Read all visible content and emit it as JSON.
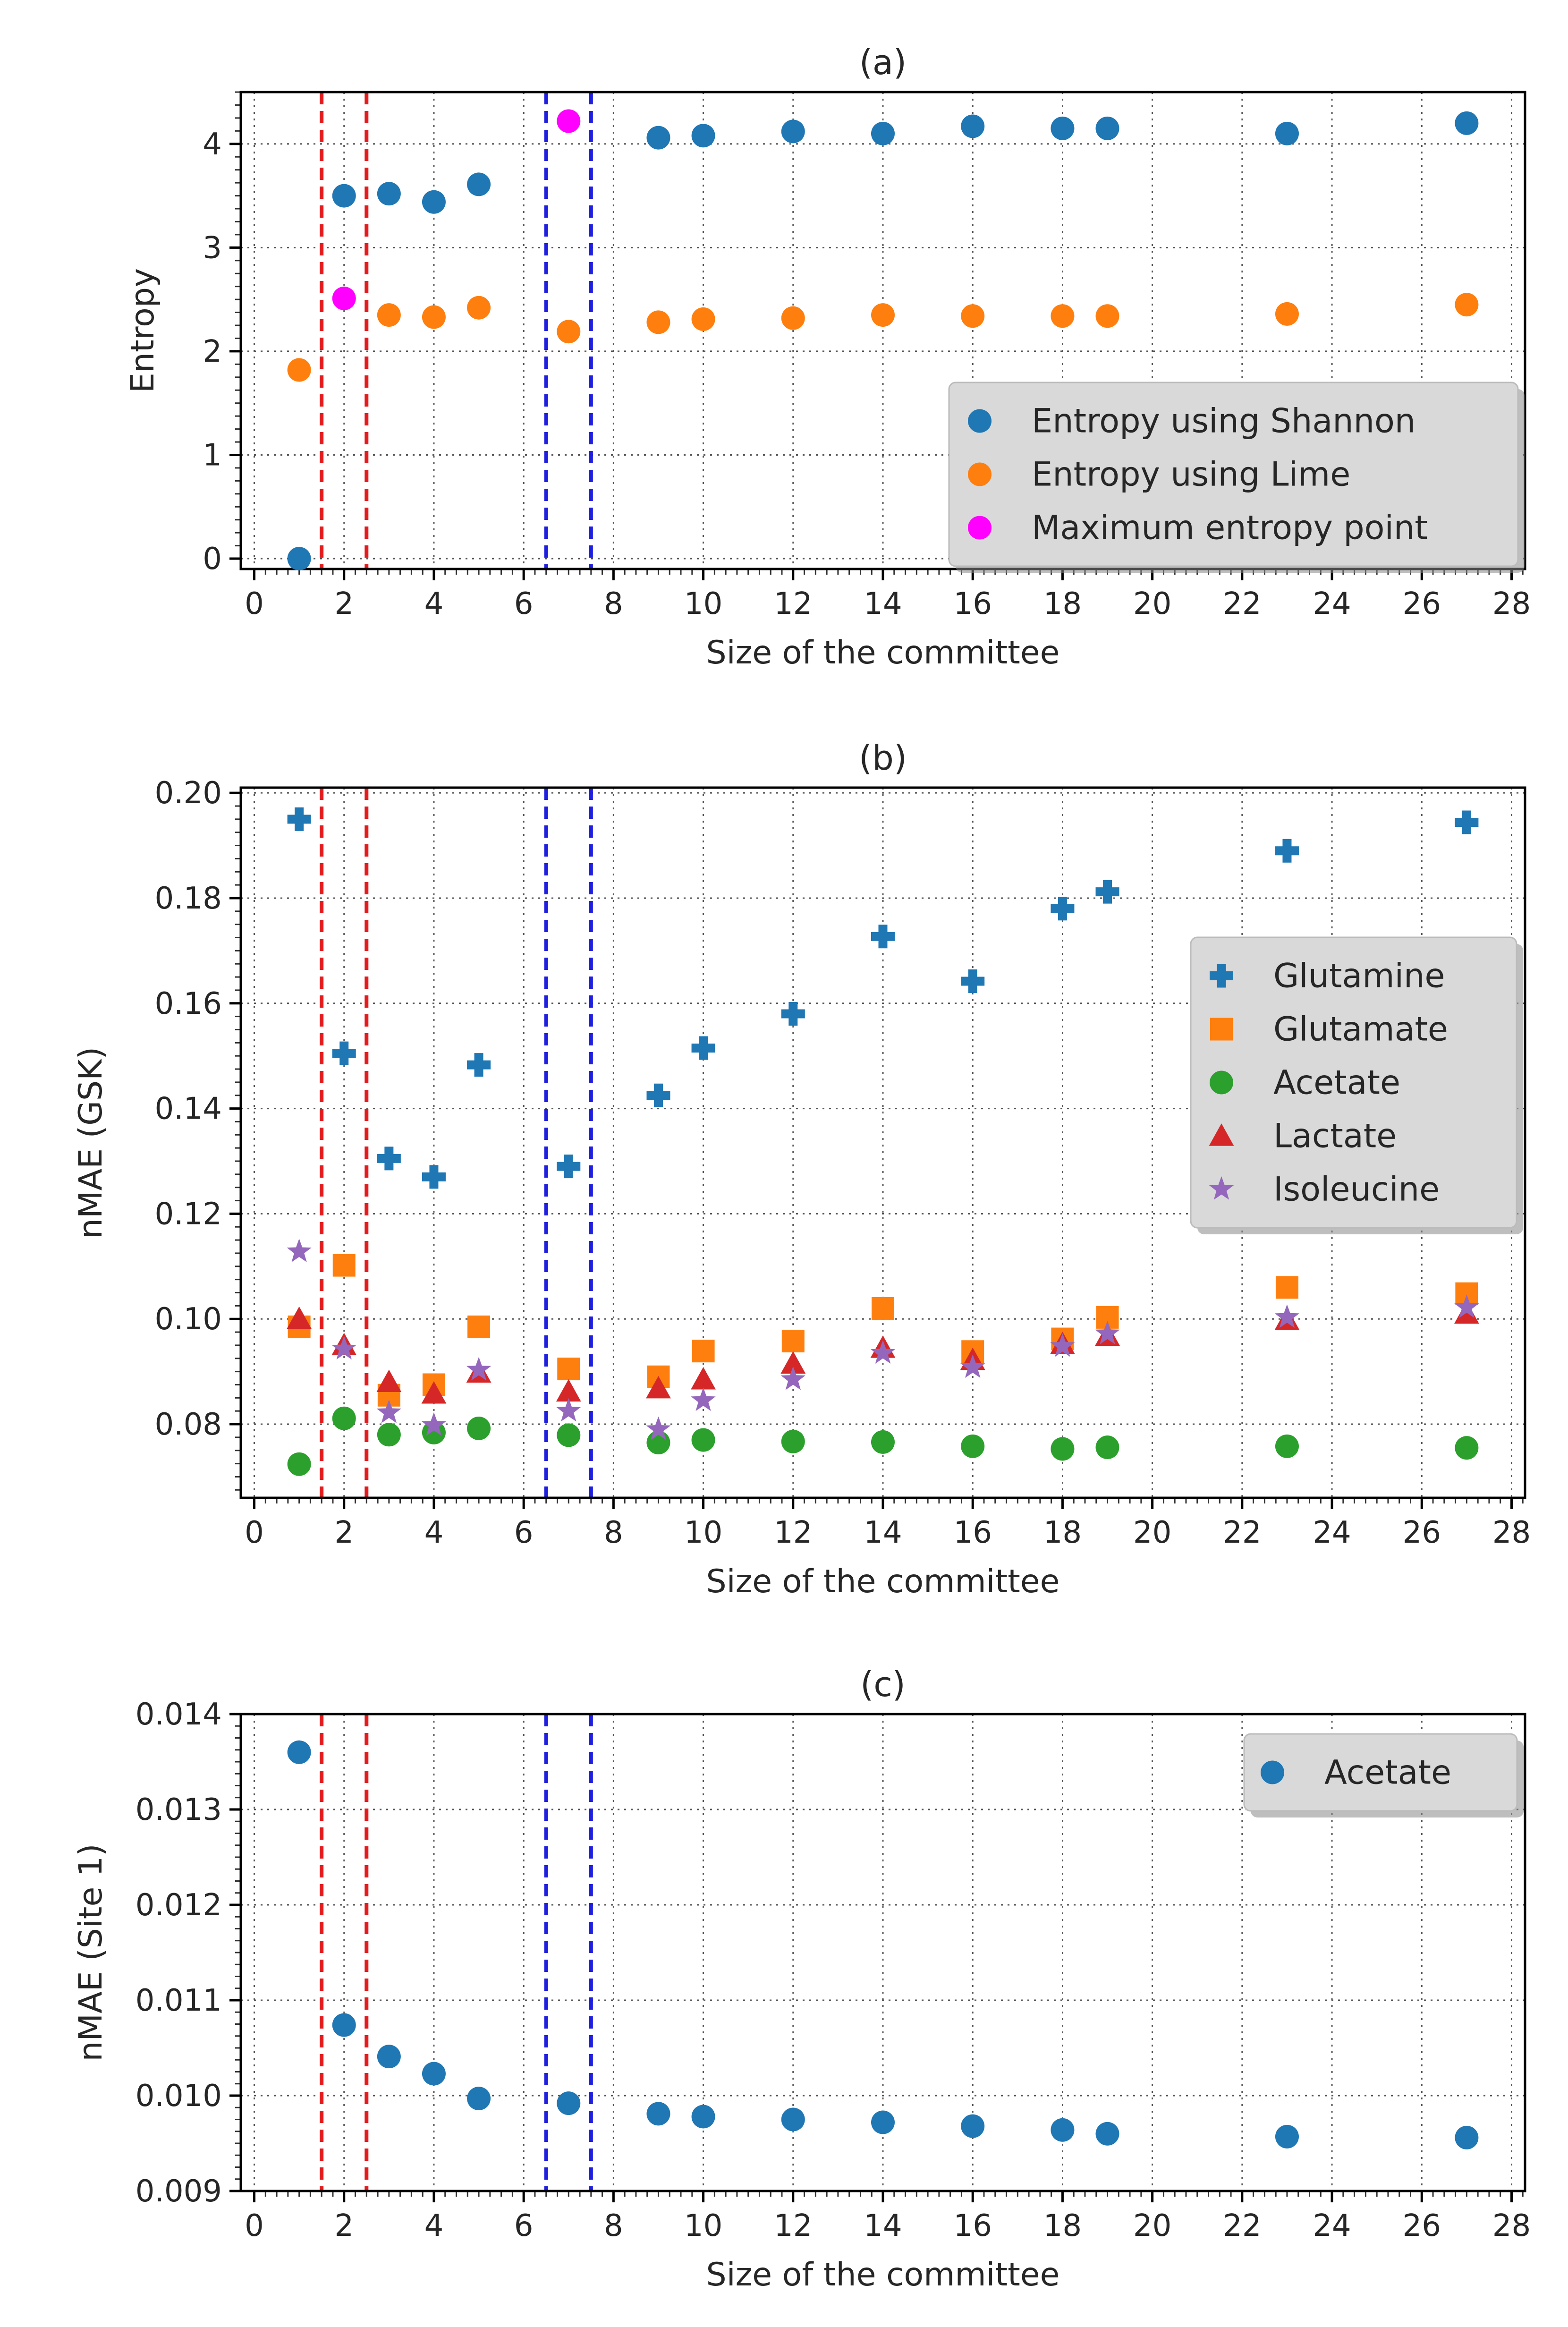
{
  "chart_data": [
    {
      "type": "scatter",
      "title": "(a)",
      "xlabel": "Size of the committee",
      "ylabel": "Entropy",
      "xlim": [
        -0.3,
        28.3
      ],
      "ylim": [
        -0.1,
        4.5
      ],
      "xticks": [
        0,
        2,
        4,
        6,
        8,
        10,
        12,
        14,
        16,
        18,
        20,
        22,
        24,
        26,
        28
      ],
      "xtick_labels": [
        "0",
        "2",
        "4",
        "6",
        "8",
        "10",
        "12",
        "14",
        "16",
        "18",
        "20",
        "22",
        "24",
        "26",
        "28"
      ],
      "yticks": [
        0,
        1,
        2,
        3,
        4
      ],
      "ytick_labels": [
        "0",
        "1",
        "2",
        "3",
        "4"
      ],
      "grid": true,
      "legend_position": "lower-right",
      "vlines": [
        {
          "x": 1.5,
          "color": "#e41a1c"
        },
        {
          "x": 2.5,
          "color": "#e41a1c"
        },
        {
          "x": 6.5,
          "color": "#1f1fdf"
        },
        {
          "x": 7.5,
          "color": "#1f1fdf"
        }
      ],
      "series": [
        {
          "name": "Entropy using Shannon",
          "marker": "circle",
          "color": "#1f77b4",
          "x": [
            1,
            2,
            3,
            4,
            5,
            9,
            10,
            12,
            14,
            16,
            18,
            19,
            23,
            27
          ],
          "y": [
            0.0,
            3.5,
            3.52,
            3.44,
            3.61,
            4.06,
            4.08,
            4.12,
            4.1,
            4.17,
            4.15,
            4.15,
            4.1,
            4.2
          ]
        },
        {
          "name": "Entropy using Lime",
          "marker": "circle",
          "color": "#ff7f0e",
          "x": [
            1,
            3,
            4,
            5,
            7,
            9,
            10,
            12,
            14,
            16,
            18,
            19,
            23,
            27
          ],
          "y": [
            1.82,
            2.35,
            2.33,
            2.42,
            2.19,
            2.28,
            2.31,
            2.32,
            2.35,
            2.34,
            2.34,
            2.34,
            2.36,
            2.45
          ]
        },
        {
          "name": "Maximum entropy point",
          "marker": "circle",
          "color": "#ff00ff",
          "x": [
            2,
            7
          ],
          "y": [
            2.51,
            4.22
          ]
        }
      ]
    },
    {
      "type": "scatter",
      "title": "(b)",
      "xlabel": "Size of the committee",
      "ylabel": "nMAE (GSK)",
      "xlim": [
        -0.3,
        28.3
      ],
      "ylim": [
        0.066,
        0.201
      ],
      "xticks": [
        0,
        2,
        4,
        6,
        8,
        10,
        12,
        14,
        16,
        18,
        20,
        22,
        24,
        26,
        28
      ],
      "xtick_labels": [
        "0",
        "2",
        "4",
        "6",
        "8",
        "10",
        "12",
        "14",
        "16",
        "18",
        "20",
        "22",
        "24",
        "26",
        "28"
      ],
      "yticks": [
        0.08,
        0.1,
        0.12,
        0.14,
        0.16,
        0.18,
        0.2
      ],
      "ytick_labels": [
        "0.08",
        "0.10",
        "0.12",
        "0.14",
        "0.16",
        "0.18",
        "0.20"
      ],
      "grid": true,
      "legend_position": "center-right",
      "vlines": [
        {
          "x": 1.5,
          "color": "#e41a1c"
        },
        {
          "x": 2.5,
          "color": "#e41a1c"
        },
        {
          "x": 6.5,
          "color": "#1f1fdf"
        },
        {
          "x": 7.5,
          "color": "#1f1fdf"
        }
      ],
      "series": [
        {
          "name": "Glutamine",
          "marker": "plus",
          "color": "#1f77b4",
          "x": [
            1,
            2,
            3,
            4,
            5,
            7,
            9,
            10,
            12,
            14,
            16,
            18,
            19,
            23,
            27
          ],
          "y": [
            0.195,
            0.1505,
            0.1305,
            0.127,
            0.1483,
            0.129,
            0.1425,
            0.1515,
            0.158,
            0.1727,
            0.1642,
            0.178,
            0.1812,
            0.189,
            0.1944
          ]
        },
        {
          "name": "Glutamate",
          "marker": "square",
          "color": "#ff7f0e",
          "x": [
            1,
            2,
            3,
            4,
            5,
            7,
            9,
            10,
            12,
            14,
            16,
            18,
            19,
            23,
            27
          ],
          "y": [
            0.0985,
            0.1102,
            0.0855,
            0.0875,
            0.0985,
            0.0905,
            0.089,
            0.0939,
            0.0958,
            0.102,
            0.0938,
            0.0962,
            0.1003,
            0.106,
            0.1048
          ]
        },
        {
          "name": "Acetate",
          "marker": "circle",
          "color": "#2ca02c",
          "x": [
            1,
            2,
            3,
            4,
            5,
            7,
            9,
            10,
            12,
            14,
            16,
            18,
            19,
            23,
            27
          ],
          "y": [
            0.0724,
            0.0811,
            0.078,
            0.0784,
            0.0792,
            0.0779,
            0.0765,
            0.077,
            0.0767,
            0.0766,
            0.0758,
            0.0753,
            0.0756,
            0.0758,
            0.0755
          ]
        },
        {
          "name": "Lactate",
          "marker": "triangle",
          "color": "#d62728",
          "x": [
            1,
            2,
            3,
            4,
            5,
            7,
            9,
            10,
            12,
            14,
            16,
            18,
            19,
            23,
            27
          ],
          "y": [
            0.1,
            0.095,
            0.088,
            0.0858,
            0.0898,
            0.0862,
            0.0868,
            0.0885,
            0.0915,
            0.0945,
            0.0922,
            0.0952,
            0.0968,
            0.0998,
            0.101
          ]
        },
        {
          "name": "Isoleucine",
          "marker": "star",
          "color": "#9467bd",
          "x": [
            1,
            2,
            3,
            4,
            5,
            7,
            9,
            10,
            12,
            14,
            16,
            18,
            19,
            23,
            27
          ],
          "y": [
            0.1128,
            0.0943,
            0.0822,
            0.0798,
            0.0903,
            0.0825,
            0.079,
            0.0845,
            0.0885,
            0.0935,
            0.0908,
            0.0948,
            0.0972,
            0.1003,
            0.1022
          ]
        }
      ]
    },
    {
      "type": "scatter",
      "title": "(c)",
      "xlabel": "Size of the committee",
      "ylabel": "nMAE (Site 1)",
      "xlim": [
        -0.3,
        28.3
      ],
      "ylim": [
        0.009,
        0.014
      ],
      "xticks": [
        0,
        2,
        4,
        6,
        8,
        10,
        12,
        14,
        16,
        18,
        20,
        22,
        24,
        26,
        28
      ],
      "xtick_labels": [
        "0",
        "2",
        "4",
        "6",
        "8",
        "10",
        "12",
        "14",
        "16",
        "18",
        "20",
        "22",
        "24",
        "26",
        "28"
      ],
      "yticks": [
        0.009,
        0.01,
        0.011,
        0.012,
        0.013,
        0.014
      ],
      "ytick_labels": [
        "0.009",
        "0.010",
        "0.011",
        "0.012",
        "0.013",
        "0.014"
      ],
      "grid": true,
      "legend_position": "top-right",
      "vlines": [
        {
          "x": 1.5,
          "color": "#e41a1c"
        },
        {
          "x": 2.5,
          "color": "#e41a1c"
        },
        {
          "x": 6.5,
          "color": "#1f1fdf"
        },
        {
          "x": 7.5,
          "color": "#1f1fdf"
        }
      ],
      "series": [
        {
          "name": "Acetate",
          "marker": "circle",
          "color": "#1f77b4",
          "x": [
            1,
            2,
            3,
            4,
            5,
            7,
            9,
            10,
            12,
            14,
            16,
            18,
            19,
            23,
            27
          ],
          "y": [
            0.0136,
            0.01074,
            0.01041,
            0.01023,
            0.00997,
            0.00992,
            0.00981,
            0.00978,
            0.00975,
            0.00972,
            0.00968,
            0.00964,
            0.0096,
            0.00957,
            0.00956
          ]
        }
      ]
    }
  ]
}
